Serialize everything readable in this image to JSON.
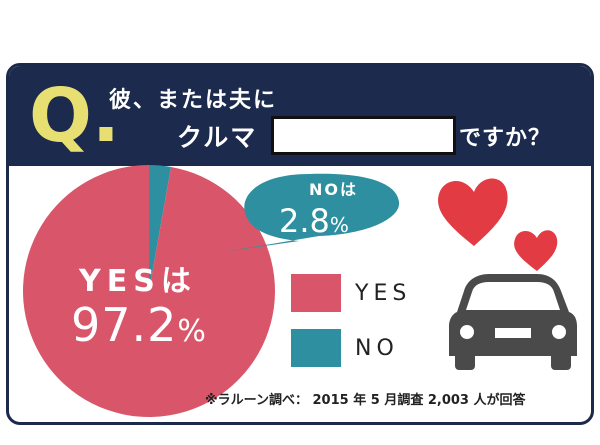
{
  "question": {
    "letter": "Q.",
    "line1": "彼、または夫に",
    "line2": "クルマ",
    "line3": "ですか？"
  },
  "chart_data": {
    "type": "pie",
    "series": [
      {
        "name": "YES",
        "value": 97.2,
        "color": "#d9566a"
      },
      {
        "name": "NO",
        "value": 2.8,
        "color": "#2d8fa0"
      }
    ],
    "slice_labels": {
      "yes_prefix": "YESは",
      "yes_value": "97.2",
      "no_prefix": "NOは",
      "no_value": "2.8",
      "unit": "%"
    },
    "legend": [
      {
        "label": "YES",
        "color": "#d9566a"
      },
      {
        "label": "NO",
        "color": "#2d8fa0"
      }
    ]
  },
  "footnote": "※ラルーン調べ： 2015 年 5 月調査 2,003 人が回答",
  "icons": [
    "heart-large-icon",
    "heart-small-icon",
    "car-icon"
  ],
  "colors": {
    "header": "#1b2a4d",
    "q_letter": "#e8df73",
    "heart": "#e33b44",
    "car": "#4a4a4a"
  }
}
